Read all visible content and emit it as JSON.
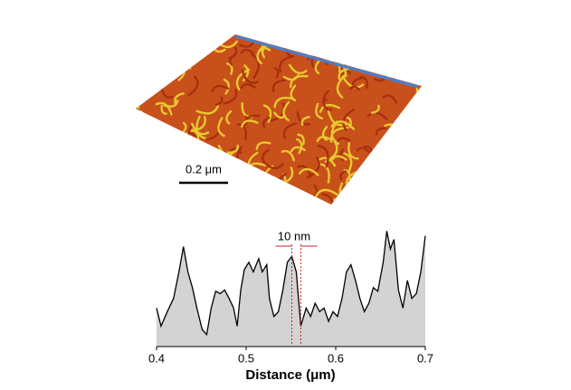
{
  "scale_bar": "0.2 μm",
  "chart_data": {
    "type": "area",
    "x_label": "Distance (μm)",
    "annotation": "10 nm",
    "annotation_markers": [
      0.551,
      0.561
    ],
    "x": [
      0.4,
      0.405,
      0.412,
      0.419,
      0.425,
      0.43,
      0.435,
      0.44,
      0.445,
      0.451,
      0.456,
      0.461,
      0.466,
      0.471,
      0.476,
      0.481,
      0.486,
      0.49,
      0.494,
      0.498,
      0.503,
      0.508,
      0.514,
      0.518,
      0.523,
      0.526,
      0.531,
      0.536,
      0.541,
      0.546,
      0.551,
      0.556,
      0.561,
      0.567,
      0.572,
      0.577,
      0.582,
      0.587,
      0.592,
      0.597,
      0.602,
      0.607,
      0.612,
      0.617,
      0.622,
      0.627,
      0.632,
      0.637,
      0.642,
      0.647,
      0.653,
      0.657,
      0.661,
      0.665,
      0.67,
      0.675,
      0.68,
      0.685,
      0.69,
      0.695,
      0.7
    ],
    "values": [
      3.2,
      1.7,
      2.9,
      4.0,
      6.2,
      8.3,
      6.2,
      4.9,
      3.2,
      1.4,
      1.0,
      3.2,
      4.6,
      4.4,
      4.7,
      4.0,
      3.2,
      1.7,
      4.7,
      6.4,
      7.0,
      6.2,
      7.3,
      6.2,
      6.8,
      4.0,
      2.5,
      2.9,
      4.7,
      7.0,
      7.5,
      6.2,
      1.7,
      3.2,
      2.5,
      3.6,
      2.9,
      3.2,
      2.1,
      2.9,
      2.5,
      4.0,
      6.2,
      6.8,
      5.5,
      4.0,
      2.9,
      3.6,
      4.9,
      4.6,
      7.0,
      9.6,
      8.1,
      8.9,
      4.7,
      3.2,
      5.5,
      4.0,
      4.4,
      6.2,
      9.2
    ],
    "fill_color": "#d3d3d3",
    "line_color": "#000000",
    "xlim": [
      0.4,
      0.7
    ],
    "xticks": [
      0.4,
      0.5,
      0.6,
      0.7
    ],
    "ylim": [
      0,
      10
    ]
  }
}
